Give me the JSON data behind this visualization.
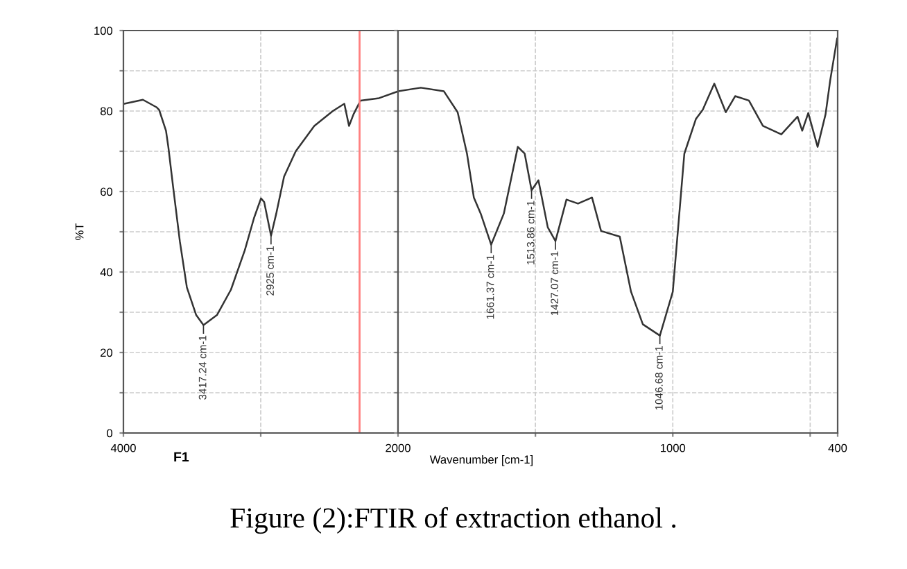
{
  "chart_data": [
    {
      "type": "line",
      "ylabel": "%T",
      "x": [
        3993,
        3858,
        3757,
        3740,
        3690,
        3673,
        3639,
        3589,
        3538,
        3470,
        3417,
        3319,
        3217,
        3116,
        3049,
        2998,
        2975,
        2925,
        2887,
        2830,
        2745,
        2610,
        2475,
        2391,
        2357,
        2324,
        2273,
        2138,
        2000
      ],
      "series": [
        {
          "color": "#333333",
          "values": [
            81.8,
            82.8,
            80.9,
            80.3,
            75.1,
            71.1,
            61.4,
            47.6,
            36.2,
            29.3,
            26.8,
            29.3,
            35.6,
            45.4,
            53.4,
            58.3,
            57.4,
            49.0,
            54.5,
            63.7,
            70.0,
            76.3,
            80.0,
            81.8,
            76.3,
            79.2,
            82.6,
            83.2,
            84.9
          ]
        }
      ],
      "xlim": [
        4000,
        2000
      ],
      "xticks": [
        4000,
        {
          "value": 3000,
          "label": null
        },
        2000
      ],
      "ylim": [
        0,
        100
      ],
      "yticks": [
        0,
        {
          "value": 10,
          "label": null
        },
        20,
        {
          "value": 30,
          "label": null
        },
        40,
        {
          "value": 50,
          "label": null
        },
        60,
        {
          "value": 70,
          "label": null
        },
        80,
        {
          "value": 90,
          "label": null
        },
        100
      ],
      "grid": true,
      "ref_lines": [
        {
          "axis": "x",
          "value": 2280,
          "color": "#ff8080"
        }
      ],
      "annotations": [
        {
          "text": "3417.24 cm-1",
          "x": 3417,
          "y": 26.8
        },
        {
          "text": "2925 cm-1",
          "x": 2925,
          "y": 49.0
        },
        "F1"
      ]
    },
    {
      "type": "line",
      "xlabel": "Wavenumber [cm-1]",
      "x": [
        2000,
        1917,
        1833,
        1783,
        1749,
        1724,
        1699,
        1661,
        1615,
        1564,
        1539,
        1514,
        1489,
        1455,
        1427,
        1387,
        1345,
        1294,
        1261,
        1193,
        1152,
        1109,
        1047,
        1000,
        958,
        916,
        891,
        849,
        807,
        773,
        723,
        672,
        605,
        546,
        529,
        507,
        473,
        444,
        427,
        402
      ],
      "series": [
        {
          "color": "#333333",
          "values": [
            84.9,
            85.8,
            84.9,
            79.7,
            69.4,
            58.5,
            54.5,
            46.8,
            54.5,
            71.1,
            69.4,
            60.3,
            62.8,
            51.1,
            47.7,
            58.0,
            57.0,
            58.5,
            50.2,
            48.8,
            35.1,
            27.0,
            24.2,
            35.1,
            69.4,
            78.0,
            80.3,
            86.8,
            79.7,
            83.7,
            82.6,
            76.3,
            74.2,
            78.6,
            75.1,
            79.5,
            71.1,
            79.2,
            87.7,
            98.0
          ]
        }
      ],
      "xlim": [
        2000,
        400
      ],
      "xticks": [
        {
          "value": 1500,
          "label": null
        },
        1000,
        {
          "value": 500,
          "label": null
        },
        400
      ],
      "ylim": [
        0,
        100
      ],
      "yticks": [
        0,
        {
          "value": 10,
          "label": null
        },
        20,
        {
          "value": 30,
          "label": null
        },
        40,
        {
          "value": 50,
          "label": null
        },
        60,
        {
          "value": 70,
          "label": null
        },
        80,
        {
          "value": 90,
          "label": null
        },
        100
      ],
      "grid": true,
      "tick_labels": "x",
      "annotations": [
        {
          "text": "1661.37 cm-1",
          "x": 1661,
          "y": 46.8
        },
        {
          "text": "1513.86 cm-1",
          "x": 1514,
          "y": 60.3
        },
        {
          "text": "1427.07 cm-1",
          "x": 1427,
          "y": 47.7
        },
        {
          "text": "1046.68 cm-1",
          "x": 1047,
          "y": 24.2
        },
        "Figure (2):FTIR of extraction ethanol ."
      ]
    }
  ]
}
